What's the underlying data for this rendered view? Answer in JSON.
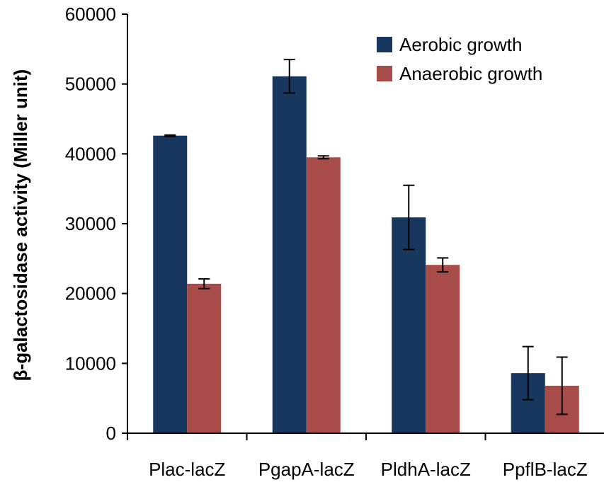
{
  "chart_data": {
    "type": "bar",
    "title": "",
    "xlabel": "",
    "ylabel": "β-galactosidase activity (Miller unit)",
    "ylim": [
      0,
      60000
    ],
    "yticks": [
      0,
      10000,
      20000,
      30000,
      40000,
      50000,
      60000
    ],
    "categories": [
      "Plac-lacZ",
      "PgapA-lacZ",
      "PldhA-lacZ",
      "PpflB-lacZ"
    ],
    "series": [
      {
        "name": "Aerobic growth",
        "color": "#17375e",
        "values": [
          42600,
          51100,
          30900,
          8600
        ],
        "errors": [
          100,
          2400,
          4600,
          3800
        ]
      },
      {
        "name": "Anaerobic growth",
        "color": "#a84c49",
        "values": [
          21400,
          39500,
          24100,
          6800
        ],
        "errors": [
          700,
          200,
          1000,
          4100
        ]
      }
    ],
    "grid": false,
    "legend_position": "top-right"
  }
}
